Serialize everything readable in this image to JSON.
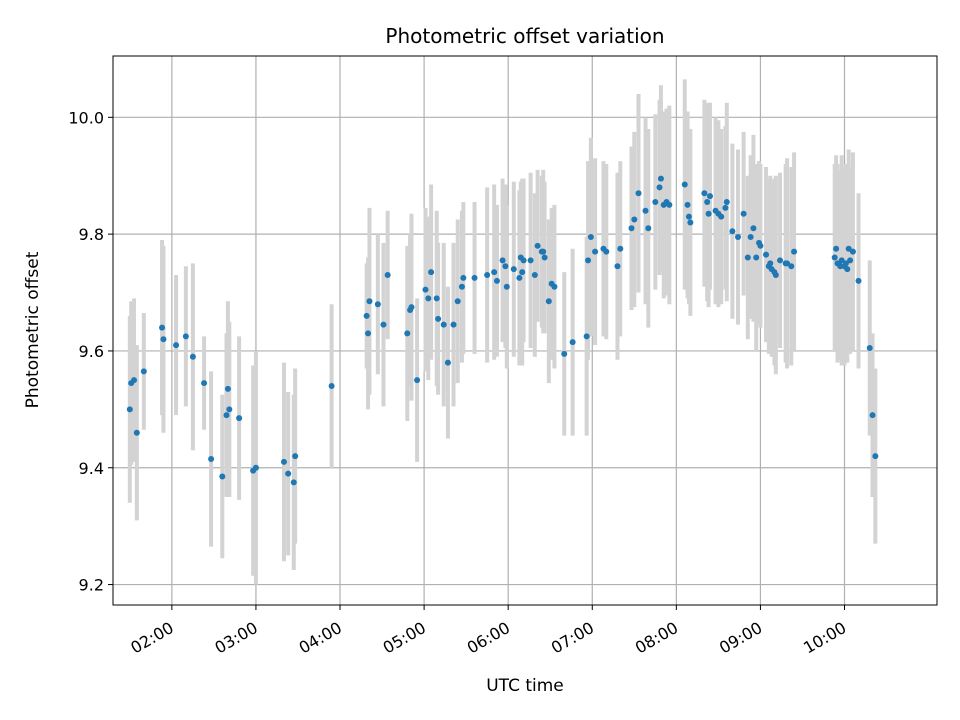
{
  "chart_data": {
    "type": "scatter",
    "title": "Photometric offset variation",
    "xlabel": "UTC time",
    "ylabel": "Photometric offset",
    "grid": true,
    "x_unit": "UTC time (HH:MM)",
    "xlim": [
      "01:18",
      "11:06"
    ],
    "ylim": [
      9.165,
      10.105
    ],
    "x_ticks": [
      "02:00",
      "03:00",
      "04:00",
      "05:00",
      "06:00",
      "07:00",
      "08:00",
      "09:00",
      "10:00"
    ],
    "y_ticks": [
      "9.2",
      "9.4",
      "9.6",
      "9.8",
      "10.0"
    ],
    "colors": {
      "point": "#1f77b4",
      "errorbar": "#d3d3d3",
      "grid": "#b0b0b0"
    },
    "series": [
      {
        "x": [
          "01:30",
          "01:31",
          "01:33",
          "01:35",
          "01:40",
          "01:53",
          "01:54",
          "02:03",
          "02:10",
          "02:15",
          "02:23",
          "02:28",
          "02:36",
          "02:39",
          "02:40",
          "02:41",
          "02:48",
          "02:58",
          "03:00",
          "03:20",
          "03:23",
          "03:27",
          "03:28",
          "03:54",
          "04:19",
          "04:20",
          "04:21",
          "04:27",
          "04:31",
          "04:34",
          "04:48",
          "04:50",
          "04:51",
          "04:55",
          "05:01",
          "05:03",
          "05:05",
          "05:09",
          "05:10",
          "05:14",
          "05:17",
          "05:21",
          "05:24",
          "05:27",
          "05:28",
          "05:36",
          "05:45",
          "05:50",
          "05:52",
          "05:56",
          "05:58",
          "05:59",
          "06:04",
          "06:08",
          "06:09",
          "06:10",
          "06:11",
          "06:16",
          "06:19",
          "06:21",
          "06:24",
          "06:25",
          "06:26",
          "06:29",
          "06:31",
          "06:33",
          "06:40",
          "06:46",
          "06:56",
          "06:57",
          "06:59",
          "07:02",
          "07:08",
          "07:10",
          "07:18",
          "07:20",
          "07:28",
          "07:30",
          "07:33",
          "07:38",
          "07:40",
          "07:45",
          "07:48",
          "07:49",
          "07:51",
          "07:53",
          "07:55",
          "08:06",
          "08:08",
          "08:09",
          "08:10",
          "08:20",
          "08:22",
          "08:23",
          "08:24",
          "08:28",
          "08:30",
          "08:32",
          "08:35",
          "08:36",
          "08:40",
          "08:44",
          "08:48",
          "08:51",
          "08:53",
          "08:55",
          "08:57",
          "08:59",
          "09:00",
          "09:04",
          "09:06",
          "09:07",
          "09:08",
          "09:10",
          "09:11",
          "09:14",
          "09:18",
          "09:19",
          "09:22",
          "09:24",
          "09:53",
          "09:54",
          "09:55",
          "09:56",
          "09:57",
          "09:58",
          "10:00",
          "10:01",
          "10:02",
          "10:03",
          "10:04",
          "10:06",
          "10:10",
          "10:18",
          "10:20",
          "10:22"
        ],
        "y": [
          9.5,
          9.545,
          9.55,
          9.46,
          9.565,
          9.64,
          9.62,
          9.61,
          9.625,
          9.59,
          9.545,
          9.415,
          9.385,
          9.49,
          9.535,
          9.5,
          9.485,
          9.395,
          9.4,
          9.41,
          9.39,
          9.375,
          9.42,
          9.54,
          9.66,
          9.63,
          9.685,
          9.68,
          9.645,
          9.73,
          9.63,
          9.67,
          9.675,
          9.55,
          9.705,
          9.69,
          9.735,
          9.69,
          9.655,
          9.645,
          9.58,
          9.645,
          9.685,
          9.71,
          9.725,
          9.725,
          9.73,
          9.735,
          9.72,
          9.755,
          9.745,
          9.71,
          9.74,
          9.725,
          9.76,
          9.735,
          9.755,
          9.755,
          9.73,
          9.78,
          9.77,
          9.77,
          9.76,
          9.685,
          9.715,
          9.71,
          9.595,
          9.615,
          9.625,
          9.755,
          9.795,
          9.77,
          9.775,
          9.77,
          9.745,
          9.775,
          9.81,
          9.825,
          9.87,
          9.84,
          9.81,
          9.855,
          9.88,
          9.895,
          9.85,
          9.855,
          9.85,
          9.885,
          9.85,
          9.83,
          9.82,
          9.87,
          9.855,
          9.835,
          9.865,
          9.84,
          9.835,
          9.83,
          9.845,
          9.855,
          9.805,
          9.795,
          9.835,
          9.76,
          9.795,
          9.81,
          9.76,
          9.785,
          9.78,
          9.765,
          9.745,
          9.75,
          9.74,
          9.735,
          9.73,
          9.755,
          9.75,
          9.75,
          9.745,
          9.77,
          9.76,
          9.775,
          9.75,
          9.75,
          9.745,
          9.755,
          9.745,
          9.75,
          9.74,
          9.775,
          9.755,
          9.77,
          9.72,
          9.605,
          9.49,
          9.42
        ],
        "yerr": [
          0.16,
          0.14,
          0.14,
          0.15,
          0.1,
          0.15,
          0.16,
          0.12,
          0.12,
          0.16,
          0.08,
          0.15,
          0.14,
          0.14,
          0.15,
          0.15,
          0.14,
          0.18,
          0.2,
          0.17,
          0.14,
          0.15,
          0.15,
          0.14,
          0.09,
          0.13,
          0.16,
          0.12,
          0.14,
          0.11,
          0.15,
          0.13,
          0.16,
          0.14,
          0.14,
          0.14,
          0.15,
          0.15,
          0.13,
          0.14,
          0.13,
          0.14,
          0.14,
          0.13,
          0.13,
          0.13,
          0.15,
          0.15,
          0.13,
          0.14,
          0.14,
          0.14,
          0.15,
          0.15,
          0.13,
          0.16,
          0.14,
          0.15,
          0.14,
          0.13,
          0.13,
          0.14,
          0.13,
          0.14,
          0.13,
          0.14,
          0.14,
          0.16,
          0.17,
          0.17,
          0.17,
          0.16,
          0.15,
          0.15,
          0.16,
          0.15,
          0.14,
          0.15,
          0.17,
          0.16,
          0.17,
          0.15,
          0.15,
          0.16,
          0.16,
          0.16,
          0.17,
          0.18,
          0.16,
          0.15,
          0.16,
          0.16,
          0.17,
          0.16,
          0.16,
          0.16,
          0.16,
          0.15,
          0.14,
          0.17,
          0.15,
          0.15,
          0.14,
          0.14,
          0.14,
          0.16,
          0.16,
          0.14,
          0.14,
          0.15,
          0.15,
          0.15,
          0.15,
          0.16,
          0.17,
          0.15,
          0.17,
          0.18,
          0.17,
          0.17,
          0.16,
          0.16,
          0.17,
          0.16,
          0.16,
          0.18,
          0.17,
          0.17,
          0.16,
          0.17,
          0.16,
          0.17,
          0.15,
          0.15,
          0.14,
          0.15
        ]
      }
    ]
  }
}
